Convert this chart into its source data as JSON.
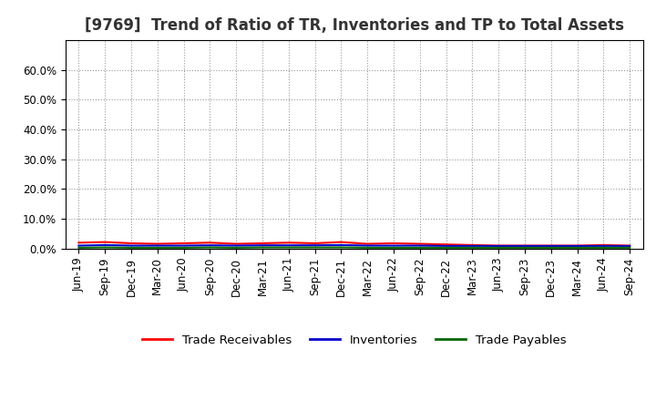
{
  "title": "[9769]  Trend of Ratio of TR, Inventories and TP to Total Assets",
  "x_labels": [
    "Jun-19",
    "Sep-19",
    "Dec-19",
    "Mar-20",
    "Jun-20",
    "Sep-20",
    "Dec-20",
    "Mar-21",
    "Jun-21",
    "Sep-21",
    "Dec-21",
    "Mar-22",
    "Jun-22",
    "Sep-22",
    "Dec-22",
    "Mar-23",
    "Jun-23",
    "Sep-23",
    "Dec-23",
    "Mar-24",
    "Jun-24",
    "Sep-24"
  ],
  "trade_receivables": [
    0.02,
    0.022,
    0.018,
    0.016,
    0.018,
    0.02,
    0.016,
    0.018,
    0.02,
    0.018,
    0.022,
    0.016,
    0.018,
    0.016,
    0.014,
    0.012,
    0.01,
    0.01,
    0.01,
    0.01,
    0.012,
    0.01
  ],
  "inventories": [
    0.01,
    0.012,
    0.01,
    0.01,
    0.01,
    0.011,
    0.01,
    0.011,
    0.011,
    0.011,
    0.012,
    0.01,
    0.01,
    0.01,
    0.009,
    0.009,
    0.009,
    0.009,
    0.009,
    0.009,
    0.009,
    0.009
  ],
  "trade_payables": [
    0.003,
    0.004,
    0.003,
    0.003,
    0.003,
    0.004,
    0.003,
    0.004,
    0.004,
    0.004,
    0.004,
    0.003,
    0.003,
    0.003,
    0.003,
    0.003,
    0.003,
    0.003,
    0.003,
    0.003,
    0.003,
    0.003
  ],
  "color_tr": "#FF0000",
  "color_inv": "#0000CC",
  "color_tp": "#006600",
  "ylim": [
    0.0,
    0.7
  ],
  "yticks": [
    0.0,
    0.1,
    0.2,
    0.3,
    0.4,
    0.5,
    0.6
  ],
  "ytick_labels": [
    "0.0%",
    "10.0%",
    "20.0%",
    "30.0%",
    "40.0%",
    "50.0%",
    "60.0%"
  ],
  "background_color": "#FFFFFF",
  "plot_bg_color": "#FFFFFF",
  "grid_color": "#999999",
  "legend_labels": [
    "Trade Receivables",
    "Inventories",
    "Trade Payables"
  ],
  "title_fontsize": 12,
  "tick_fontsize": 8.5
}
